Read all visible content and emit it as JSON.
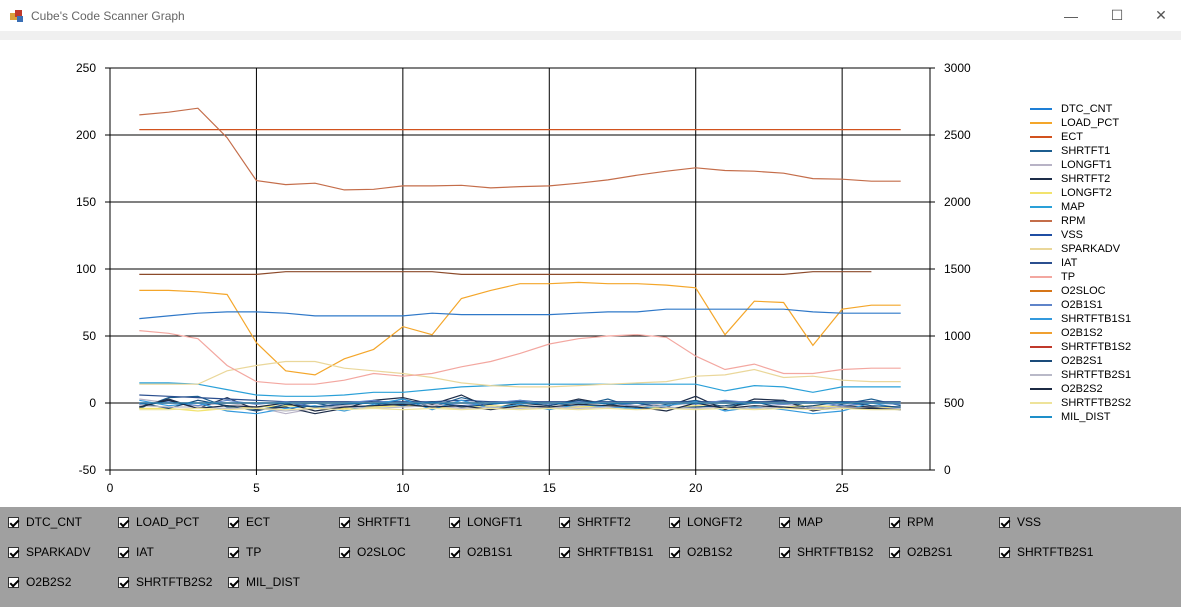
{
  "window": {
    "title": "Cube's Code Scanner Graph",
    "minimize_glyph": "—",
    "maximize_glyph": "☐",
    "close_glyph": "✕"
  },
  "chart_data": {
    "type": "line",
    "x_axis": {
      "min": 0,
      "max": 28,
      "ticks": [
        0,
        5,
        10,
        15,
        20,
        25
      ]
    },
    "y_axis_left": {
      "min": -50,
      "max": 250,
      "ticks": [
        -50,
        0,
        50,
        100,
        150,
        200,
        250
      ]
    },
    "y_axis_right": {
      "min": 0,
      "max": 3000,
      "ticks": [
        0,
        500,
        1000,
        1500,
        2000,
        2500,
        3000
      ]
    },
    "grid": true,
    "legend_position": "right",
    "x": [
      1,
      2,
      3,
      4,
      5,
      6,
      7,
      8,
      9,
      10,
      11,
      12,
      13,
      14,
      15,
      16,
      17,
      18,
      19,
      20,
      21,
      22,
      23,
      24,
      25,
      26,
      27
    ],
    "series": [
      {
        "name": "DTC_CNT",
        "color": "#1e7fd6",
        "axis": "left",
        "values": [
          0,
          0,
          0,
          0,
          0,
          0,
          0,
          0,
          0,
          0,
          0,
          0,
          0,
          0,
          0,
          0,
          0,
          0,
          0,
          0,
          0,
          0,
          0,
          0,
          0,
          0,
          0
        ]
      },
      {
        "name": "LOAD_PCT",
        "color": "#f4a62a",
        "axis": "left",
        "values": [
          84,
          84,
          83,
          81,
          45,
          24,
          21,
          33,
          40,
          57,
          51,
          78,
          84,
          89,
          89,
          90,
          89,
          89,
          88,
          86,
          51,
          76,
          75,
          43,
          70,
          73,
          73
        ]
      },
      {
        "name": "ECT",
        "color": "#d2521e",
        "axis": "left",
        "values": [
          204,
          204,
          204,
          204,
          204,
          204,
          204,
          204,
          204,
          204,
          204,
          204,
          204,
          204,
          204,
          204,
          204,
          204,
          204,
          204,
          204,
          204,
          204,
          204,
          204,
          204,
          204
        ]
      },
      {
        "name": "SHRTFT1",
        "color": "#1c5d8f",
        "axis": "left",
        "values": [
          -4,
          4,
          5,
          -3,
          -5,
          -2,
          0,
          -4,
          -2,
          3,
          -3,
          4,
          -1,
          2,
          0,
          -2,
          3,
          -4,
          -1,
          2,
          -3,
          0,
          2,
          -4,
          -1,
          3,
          -2
        ]
      },
      {
        "name": "LONGFT1",
        "color": "#b8b3c6",
        "axis": "left",
        "values": [
          3,
          0,
          -2,
          0,
          -3,
          -8,
          -4,
          -2,
          -3,
          0,
          -1,
          -3,
          -5,
          -3,
          -4,
          -2,
          -3,
          0,
          -2,
          0,
          -3,
          -4,
          -1,
          -3,
          -2,
          -4,
          -3
        ]
      },
      {
        "name": "SHRTFT2",
        "color": "#1d2d49",
        "axis": "left",
        "values": [
          -3,
          3,
          -4,
          4,
          -5,
          -3,
          -8,
          -4,
          2,
          4,
          -1,
          6,
          -4,
          0,
          -2,
          3,
          -1,
          -4,
          -3,
          5,
          -5,
          3,
          2,
          -6,
          -2,
          -3,
          -5
        ]
      },
      {
        "name": "LONGFT2",
        "color": "#f2e36d",
        "axis": "left",
        "values": [
          -4,
          -4,
          -6,
          -4,
          -3,
          -2,
          -3,
          -4,
          -3,
          -2,
          -3,
          -4,
          -2,
          -3,
          -4,
          -3,
          -2,
          -3,
          -4,
          -2,
          -3,
          -4,
          -3,
          -2,
          -3,
          -4,
          -3
        ]
      },
      {
        "name": "MAP",
        "color": "#2aa0d8",
        "axis": "left",
        "values": [
          15,
          15,
          14,
          10,
          6,
          5,
          5,
          6,
          8,
          8,
          10,
          12,
          13,
          14,
          14,
          14,
          14,
          14,
          14,
          14,
          9,
          13,
          12,
          8,
          12,
          12,
          12
        ]
      },
      {
        "name": "RPM",
        "color": "#c46d4a",
        "axis": "right",
        "values": [
          2650,
          2670,
          2700,
          2480,
          2160,
          2130,
          2140,
          2090,
          2095,
          2120,
          2120,
          2125,
          2105,
          2115,
          2120,
          2140,
          2165,
          2200,
          2230,
          2255,
          2235,
          2230,
          2215,
          2175,
          2170,
          2155,
          2155
        ]
      },
      {
        "name": "VSS",
        "color": "#1f4ea3",
        "axis": "left",
        "values": [
          0,
          0,
          0,
          0,
          0,
          0,
          0,
          0,
          0,
          0,
          0,
          0,
          0,
          0,
          0,
          0,
          0,
          0,
          0,
          0,
          0,
          0,
          0,
          0,
          0,
          0,
          0
        ]
      },
      {
        "name": "SPARKADV",
        "color": "#ead79a",
        "axis": "left",
        "values": [
          14,
          14,
          14,
          24,
          28,
          31,
          31,
          26,
          24,
          22,
          19,
          15,
          13,
          12,
          12,
          13,
          14,
          15,
          16,
          20,
          21,
          25,
          19,
          20,
          17,
          16,
          16
        ]
      },
      {
        "name": "IAT",
        "color": "#2b4f8f",
        "axis": "left",
        "values": [
          6,
          5,
          4,
          3,
          2,
          1,
          1,
          1,
          1,
          1,
          1,
          2,
          1,
          1,
          1,
          1,
          1,
          1,
          1,
          1,
          1,
          1,
          1,
          1,
          1,
          1,
          1
        ]
      },
      {
        "name": "TP",
        "color": "#f3a7a0",
        "axis": "left",
        "values": [
          54,
          52,
          48,
          28,
          16,
          14,
          14,
          17,
          22,
          20,
          22,
          27,
          31,
          37,
          44,
          48,
          50,
          51,
          49,
          35,
          25,
          29,
          22,
          22,
          25,
          26,
          26
        ]
      },
      {
        "name": "O2SLOC",
        "color": "#d67518",
        "axis": "left",
        "values": [
          0,
          0,
          0,
          0,
          0,
          0,
          0,
          0,
          0,
          0,
          0,
          0,
          0,
          0,
          0,
          0,
          0,
          0,
          0,
          0,
          0,
          0,
          0,
          0,
          0,
          0,
          0
        ]
      },
      {
        "name": "O2B1S1",
        "color": "#5f84c9",
        "axis": "left",
        "values": [
          -1,
          1,
          -2,
          2,
          -1,
          1,
          -3,
          0,
          2,
          -1,
          1,
          -2,
          0,
          2,
          -1,
          1,
          0,
          -2,
          1,
          -1,
          2,
          0,
          -1,
          1,
          -2,
          0,
          -1
        ]
      },
      {
        "name": "SHRTFTB1S1",
        "color": "#3399dd",
        "axis": "left",
        "values": [
          2,
          -2,
          0,
          -6,
          -8,
          -4,
          -2,
          -6,
          -1,
          3,
          -5,
          2,
          -4,
          -1,
          -5,
          -1,
          -3,
          -4,
          -2,
          1,
          -6,
          -3,
          -5,
          -8,
          -6,
          0,
          -4
        ]
      },
      {
        "name": "O2B1S2",
        "color": "#f0a030",
        "axis": "left",
        "values": [
          0,
          0,
          0,
          0,
          0,
          0,
          0,
          0,
          0,
          0,
          0,
          0,
          0,
          0,
          0,
          0,
          0,
          0,
          0,
          0,
          0,
          0,
          0,
          0,
          0,
          0,
          0
        ]
      },
      {
        "name": "SHRTFTB1S2",
        "color": "#c0392b",
        "axis": "left",
        "values": [
          0,
          0,
          0,
          0,
          0,
          0,
          0,
          0,
          0,
          0,
          0,
          0,
          0,
          0,
          0,
          0,
          0,
          0,
          0,
          0,
          0,
          0,
          0,
          0,
          0,
          0,
          0
        ]
      },
      {
        "name": "O2B2S1",
        "color": "#1a4b7a",
        "axis": "left",
        "values": [
          0,
          -4,
          2,
          -2,
          -6,
          -1,
          -3,
          -1,
          0,
          -2,
          1,
          -3,
          -1,
          1,
          -2,
          2,
          -1,
          0,
          -4,
          -3,
          -2,
          1,
          -4,
          -2,
          1,
          -2,
          -3
        ]
      },
      {
        "name": "SHRTFTB2S1",
        "color": "#b9b9c8",
        "axis": "left",
        "values": [
          -2,
          -3,
          -3,
          -4,
          -4,
          -6,
          -4,
          -3,
          -4,
          -3,
          -2,
          -4,
          -3,
          -4,
          -3,
          -4,
          -3,
          -2,
          -3,
          -4,
          -3,
          -4,
          -3,
          -4,
          -3,
          -4,
          -4
        ]
      },
      {
        "name": "O2B2S2",
        "color": "#1c2a44",
        "axis": "left",
        "values": [
          -3,
          2,
          -4,
          -2,
          -3,
          0,
          -6,
          -3,
          -2,
          -1,
          -3,
          -2,
          -5,
          -2,
          -3,
          -1,
          -2,
          -3,
          -6,
          0,
          -4,
          -2,
          -3,
          -5,
          -4,
          -4,
          -5
        ]
      },
      {
        "name": "SHRTFTB2S2",
        "color": "#eee39a",
        "axis": "left",
        "values": [
          -5,
          -5,
          -4,
          -5,
          -4,
          -5,
          -4,
          -5,
          -4,
          -5,
          -4,
          -5,
          -4,
          -5,
          -4,
          -5,
          -4,
          -5,
          -4,
          -5,
          -4,
          -5,
          -4,
          -5,
          -4,
          -5,
          -5
        ]
      },
      {
        "name": "MIL_DIST",
        "color": "#1e8fc9",
        "axis": "left",
        "values": [
          0,
          0,
          0,
          0,
          0,
          0,
          0,
          0,
          0,
          0,
          0,
          0,
          0,
          0,
          0,
          0,
          0,
          0,
          0,
          0,
          0,
          0,
          0,
          0,
          0,
          0,
          0
        ]
      },
      {
        "name": "",
        "color": "#8c4a2a",
        "axis": "left",
        "values": [
          96,
          96,
          96,
          96,
          96,
          98,
          98,
          98,
          98,
          98,
          98,
          96,
          96,
          96,
          96,
          96,
          96,
          96,
          96,
          96,
          96,
          96,
          96,
          98,
          98,
          98,
          null
        ]
      },
      {
        "name": "",
        "color": "#2f78c8",
        "axis": "left",
        "values": [
          63,
          65,
          67,
          68,
          68,
          67,
          65,
          65,
          65,
          65,
          67,
          66,
          66,
          66,
          66,
          67,
          68,
          68,
          70,
          70,
          70,
          70,
          70,
          68,
          67,
          67,
          67
        ]
      }
    ]
  },
  "legend": [
    "DTC_CNT",
    "LOAD_PCT",
    "ECT",
    "SHRTFT1",
    "LONGFT1",
    "SHRTFT2",
    "LONGFT2",
    "MAP",
    "RPM",
    "VSS",
    "SPARKADV",
    "IAT",
    "TP",
    "O2SLOC",
    "O2B1S1",
    "SHRTFTB1S1",
    "O2B1S2",
    "SHRTFTB1S2",
    "O2B2S1",
    "SHRTFTB2S1",
    "O2B2S2",
    "SHRTFTB2S2",
    "MIL_DIST"
  ],
  "checkboxes": [
    {
      "label": "DTC_CNT",
      "checked": true
    },
    {
      "label": "LOAD_PCT",
      "checked": true
    },
    {
      "label": "ECT",
      "checked": true
    },
    {
      "label": "SHRTFT1",
      "checked": true
    },
    {
      "label": "LONGFT1",
      "checked": true
    },
    {
      "label": "SHRTFT2",
      "checked": true
    },
    {
      "label": "LONGFT2",
      "checked": true
    },
    {
      "label": "MAP",
      "checked": true
    },
    {
      "label": "RPM",
      "checked": true
    },
    {
      "label": "VSS",
      "checked": true
    },
    {
      "label": "SPARKADV",
      "checked": true
    },
    {
      "label": "IAT",
      "checked": true
    },
    {
      "label": "TP",
      "checked": true
    },
    {
      "label": "O2SLOC",
      "checked": true
    },
    {
      "label": "O2B1S1",
      "checked": true
    },
    {
      "label": "SHRTFTB1S1",
      "checked": true
    },
    {
      "label": "O2B1S2",
      "checked": true
    },
    {
      "label": "SHRTFTB1S2",
      "checked": true
    },
    {
      "label": "O2B2S1",
      "checked": true
    },
    {
      "label": "SHRTFTB2S1",
      "checked": true
    },
    {
      "label": "O2B2S2",
      "checked": true
    },
    {
      "label": "SHRTFTB2S2",
      "checked": true
    },
    {
      "label": "MIL_DIST",
      "checked": true
    }
  ]
}
